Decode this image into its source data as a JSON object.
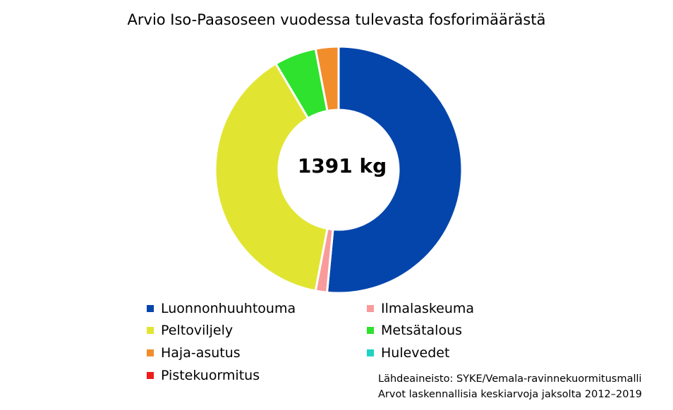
{
  "chart_data": {
    "type": "pie",
    "title": "Arvio Iso-Paasoseen vuodessa tulevasta fosforimäärästä",
    "center_label": "1391 kg",
    "categories": [
      "Luonnonhuuhtouma",
      "Ilmalaskeuma",
      "Peltoviljely",
      "Metsätalous",
      "Haja-asutus",
      "Hulevedet",
      "Pistekuormitus"
    ],
    "values": [
      51.5,
      1.5,
      38.5,
      5.5,
      3.0,
      0.0,
      0.0
    ],
    "value_unit": "percent of total (estimated)",
    "colors": [
      "#0445ac",
      "#f99b9b",
      "#e1e532",
      "#2ee22e",
      "#f28d2b",
      "#1ed3c3",
      "#ef1b1b"
    ],
    "legend_position": "bottom",
    "legend": [
      {
        "label": "Luonnonhuuhtouma",
        "color": "#0445ac"
      },
      {
        "label": "Ilmalaskeuma",
        "color": "#f99b9b"
      },
      {
        "label": "Peltoviljely",
        "color": "#e1e532"
      },
      {
        "label": "Metsätalous",
        "color": "#2ee22e"
      },
      {
        "label": "Haja-asutus",
        "color": "#f28d2b"
      },
      {
        "label": "Hulevedet",
        "color": "#1ed3c3"
      },
      {
        "label": "Pistekuormitus",
        "color": "#ef1b1b"
      }
    ]
  },
  "source": {
    "line1": "Lähdeaineisto: SYKE/Vemala-ravinnekuormitusmalli",
    "line2": "Arvot laskennallisia keskiarvoja jaksolta 2012–2019"
  }
}
